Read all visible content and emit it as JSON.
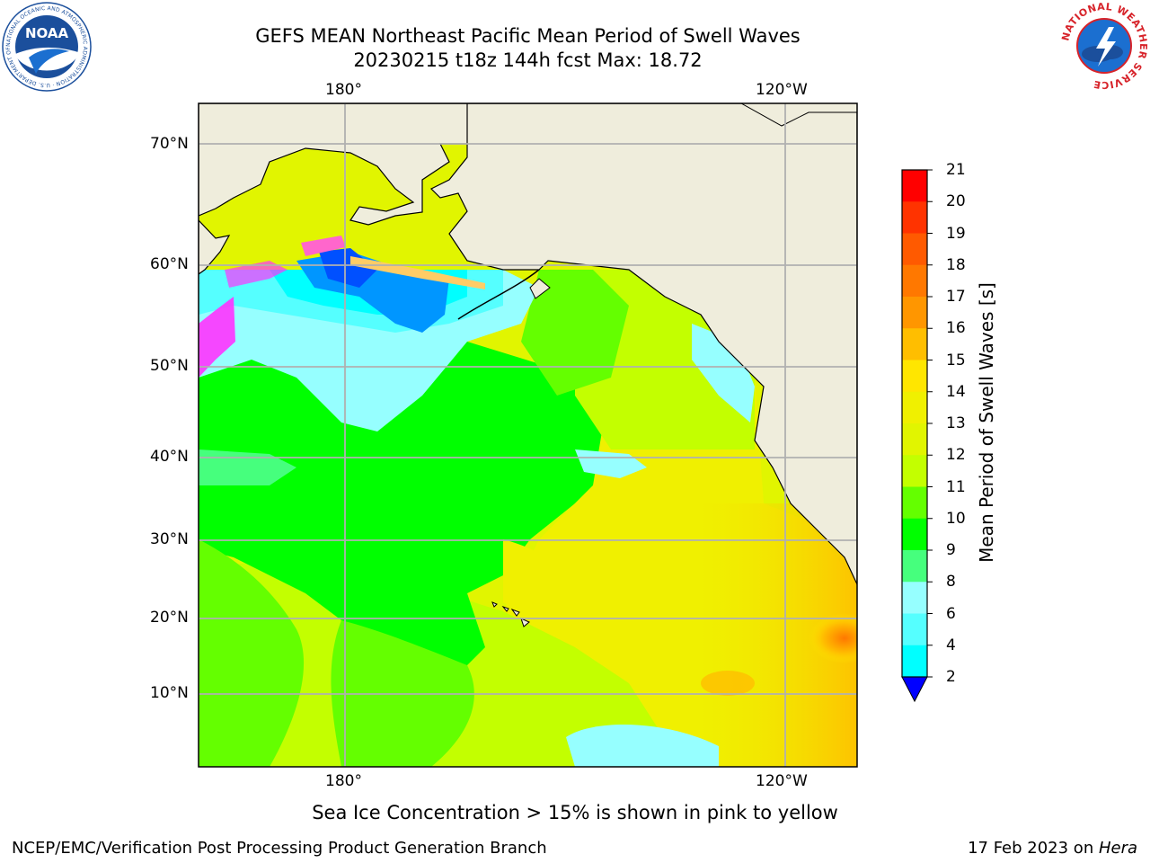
{
  "header": {
    "title_line1": "GEFS MEAN Northeast Pacific Mean Period of Swell Waves",
    "title_line2": "20230215 t18z 144h fcst   Max: 18.72"
  },
  "logos": {
    "left_name": "NOAA",
    "left_ring_text": "NATIONAL OCEANIC AND ATMOSPHERIC ADMINISTRATION · U.S. DEPARTMENT OF COMMERCE",
    "right_ring_text": "NATIONAL WEATHER SERVICE",
    "noaa_blue": "#1b4f9c",
    "nws_red": "#d7232a"
  },
  "map": {
    "top_lon_labels": [
      "180°",
      "120°W"
    ],
    "bottom_lon_labels": [
      "180°",
      "120°W"
    ],
    "lat_labels": [
      "70°N",
      "60°N",
      "50°N",
      "40°N",
      "30°N",
      "20°N",
      "10°N"
    ],
    "grid": true,
    "land_color": "#efeddc",
    "ice_color": "#ffffff"
  },
  "colorbar": {
    "label": "Mean Period of Swell Waves [s]",
    "ticks": [
      "21",
      "20",
      "19",
      "18",
      "17",
      "16",
      "15",
      "14",
      "13",
      "12",
      "11",
      "10",
      "9",
      "8",
      "6",
      "4",
      "2"
    ],
    "colors": [
      "#ff0000",
      "#ff3300",
      "#ff5a00",
      "#ff7800",
      "#ff9600",
      "#ffbe00",
      "#ffe600",
      "#f0f000",
      "#e1f500",
      "#c3ff00",
      "#64ff00",
      "#00ff00",
      "#46ff7d",
      "#96ffff",
      "#55ffff",
      "#00ffff",
      "#0096ff",
      "#0000ff"
    ],
    "extend": "min"
  },
  "footer": {
    "note": "Sea Ice Concentration > 15% is shown in pink to yellow",
    "left": "NCEP/EMC/Verification Post Processing Product Generation Branch",
    "right_date": "17 Feb 2023 on ",
    "right_host": "Hera"
  }
}
